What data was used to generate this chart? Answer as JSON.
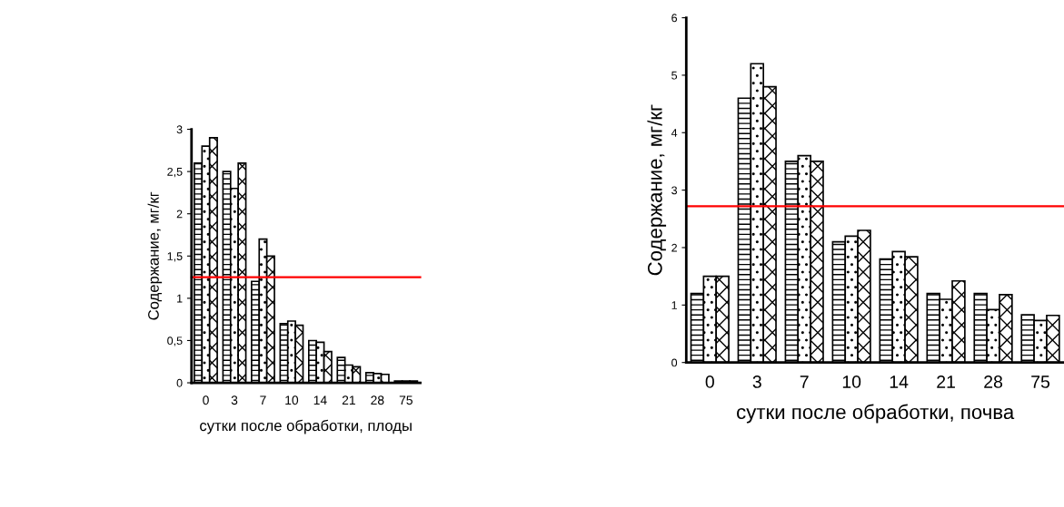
{
  "chart_data": [
    {
      "type": "bar",
      "xlabel": "сутки после обработки, плоды",
      "ylabel": "Содержание, мг/кг",
      "categories": [
        "0",
        "3",
        "7",
        "10",
        "14",
        "21",
        "28",
        "75"
      ],
      "series": [
        {
          "values": [
            2.6,
            2.5,
            1.2,
            0.7,
            0.5,
            0.3,
            0.12,
            0.02
          ]
        },
        {
          "values": [
            2.8,
            2.3,
            1.7,
            0.73,
            0.48,
            0.21,
            0.11,
            0.02
          ]
        },
        {
          "values": [
            2.9,
            2.6,
            1.5,
            0.68,
            0.37,
            0.19,
            0.1,
            0.02
          ]
        }
      ],
      "ylim": [
        0,
        3
      ],
      "yticks": [
        0,
        {
          "value": 0.5,
          "label": "0,5"
        },
        1,
        {
          "value": 1.5,
          "label": "1,5"
        },
        2,
        {
          "value": 2.5,
          "label": "2,5"
        },
        3
      ],
      "ref_lines": [
        {
          "axis": "y",
          "value": 1.25,
          "color": "#ff0000"
        }
      ],
      "grid": false
    },
    {
      "type": "bar",
      "xlabel": "сутки после обработки, почва",
      "ylabel": "Содержание, мг/кг",
      "categories": [
        "0",
        "3",
        "7",
        "10",
        "14",
        "21",
        "28",
        "75"
      ],
      "series": [
        {
          "values": [
            1.2,
            4.6,
            3.5,
            2.1,
            1.8,
            1.2,
            1.2,
            0.83
          ]
        },
        {
          "values": [
            1.5,
            5.2,
            3.6,
            2.2,
            1.93,
            1.1,
            0.92,
            0.73
          ]
        },
        {
          "values": [
            1.5,
            4.8,
            3.5,
            2.3,
            1.84,
            1.42,
            1.18,
            0.82
          ]
        }
      ],
      "ylim": [
        0,
        6
      ],
      "yticks": [
        0,
        1,
        2,
        3,
        4,
        5,
        6
      ],
      "ref_lines": [
        {
          "axis": "y",
          "value": 2.72,
          "color": "#ff0000"
        }
      ],
      "grid": false
    }
  ]
}
